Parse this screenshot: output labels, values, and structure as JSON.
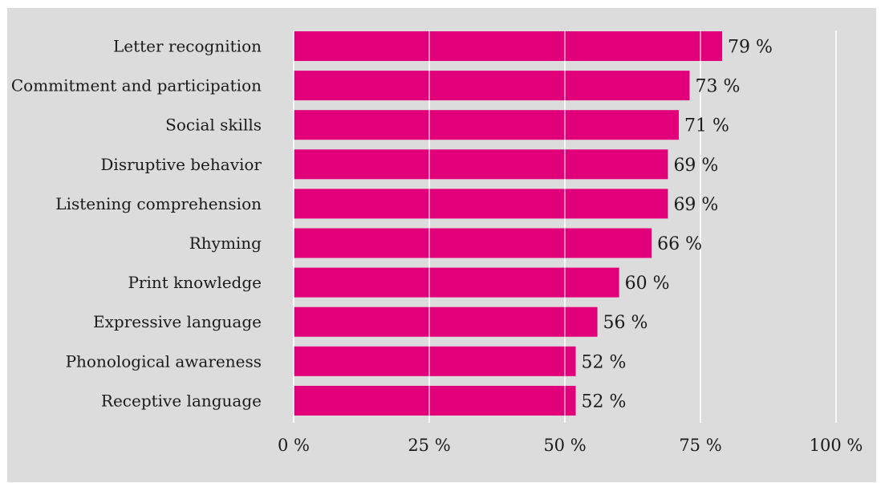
{
  "chart_data": {
    "type": "bar",
    "orientation": "horizontal",
    "categories": [
      "Letter recognition",
      "Commitment and participation",
      "Social skills",
      "Disruptive behavior",
      "Listening comprehension",
      "Rhyming",
      "Print knowledge",
      "Expressive language",
      "Phonological awareness",
      "Receptive language"
    ],
    "values": [
      79,
      73,
      71,
      69,
      69,
      66,
      60,
      56,
      52,
      52
    ],
    "value_labels": [
      "79 %",
      "73 %",
      "71 %",
      "69 %",
      "69 %",
      "66 %",
      "60 %",
      "56 %",
      "52 %",
      "52 %"
    ],
    "xlim": [
      0,
      100
    ],
    "xticks": [
      0,
      25,
      50,
      75,
      100
    ],
    "xtick_labels": [
      "0 %",
      "25 %",
      "50 %",
      "75 %",
      "100 %"
    ],
    "grid": true,
    "title": "",
    "xlabel": "",
    "ylabel": "",
    "colors": {
      "bar": "#e2007a",
      "background": "#dcdcdc",
      "gridline": "#ffffff",
      "text": "#1a1a1a"
    }
  }
}
